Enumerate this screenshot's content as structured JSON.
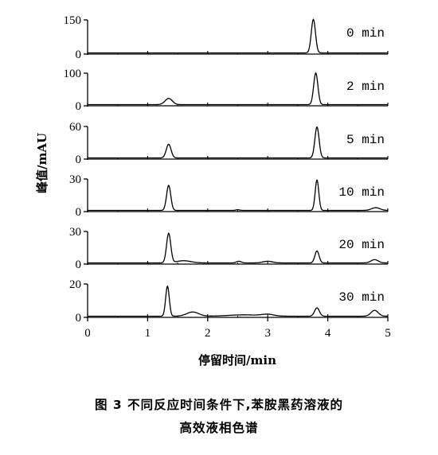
{
  "chart_data": {
    "type": "line",
    "xlabel": "停留时间/min",
    "ylabel": "峰值/mAU",
    "xlim": [
      0,
      5
    ],
    "xticks": [
      "0",
      "1",
      "2",
      "3",
      "4",
      "5"
    ],
    "grid": false,
    "panels": [
      {
        "name": "0 min",
        "ylim": [
          0,
          150
        ],
        "yticks": [
          "0",
          "150"
        ],
        "peaks": [
          {
            "center": 3.76,
            "height": 147,
            "sigma": 0.035
          }
        ]
      },
      {
        "name": "2 min",
        "ylim": [
          0,
          100
        ],
        "yticks": [
          "0",
          "100"
        ],
        "peaks": [
          {
            "center": 1.35,
            "height": 19,
            "sigma": 0.06
          },
          {
            "center": 3.8,
            "height": 97,
            "sigma": 0.035
          }
        ]
      },
      {
        "name": "5 min",
        "ylim": [
          0,
          60
        ],
        "yticks": [
          "0",
          "60"
        ],
        "peaks": [
          {
            "center": 1.35,
            "height": 25,
            "sigma": 0.04
          },
          {
            "center": 3.82,
            "height": 57,
            "sigma": 0.035
          }
        ]
      },
      {
        "name": "10 min",
        "ylim": [
          0,
          30
        ],
        "yticks": [
          "0",
          "30"
        ],
        "peaks": [
          {
            "center": 1.35,
            "height": 23,
            "sigma": 0.035
          },
          {
            "center": 2.5,
            "height": 0.6,
            "sigma": 0.03
          },
          {
            "center": 3.82,
            "height": 28,
            "sigma": 0.03
          },
          {
            "center": 4.8,
            "height": 2.5,
            "sigma": 0.07
          }
        ]
      },
      {
        "name": "20 min",
        "ylim": [
          0,
          30
        ],
        "yticks": [
          "0",
          "30"
        ],
        "peaks": [
          {
            "center": 1.35,
            "height": 27,
            "sigma": 0.035
          },
          {
            "center": 1.6,
            "height": 2,
            "sigma": 0.12
          },
          {
            "center": 2.52,
            "height": 1.5,
            "sigma": 0.04
          },
          {
            "center": 3.0,
            "height": 1.5,
            "sigma": 0.08
          },
          {
            "center": 3.82,
            "height": 11,
            "sigma": 0.035
          },
          {
            "center": 4.78,
            "height": 3,
            "sigma": 0.06
          }
        ]
      },
      {
        "name": "30 min",
        "ylim": [
          0,
          20
        ],
        "yticks": [
          "0",
          "20"
        ],
        "peaks": [
          {
            "center": 1.33,
            "height": 18,
            "sigma": 0.03
          },
          {
            "center": 1.75,
            "height": 2.5,
            "sigma": 0.1
          },
          {
            "center": 2.6,
            "height": 0.8,
            "sigma": 0.25
          },
          {
            "center": 3.0,
            "height": 1.0,
            "sigma": 0.1
          },
          {
            "center": 3.82,
            "height": 5,
            "sigma": 0.04
          },
          {
            "center": 4.78,
            "height": 3.5,
            "sigma": 0.06
          }
        ]
      }
    ]
  },
  "caption": {
    "line1": "图 3   不同反应时间条件下,苯胺黑药溶液的",
    "line2": "高效液相色谱"
  }
}
